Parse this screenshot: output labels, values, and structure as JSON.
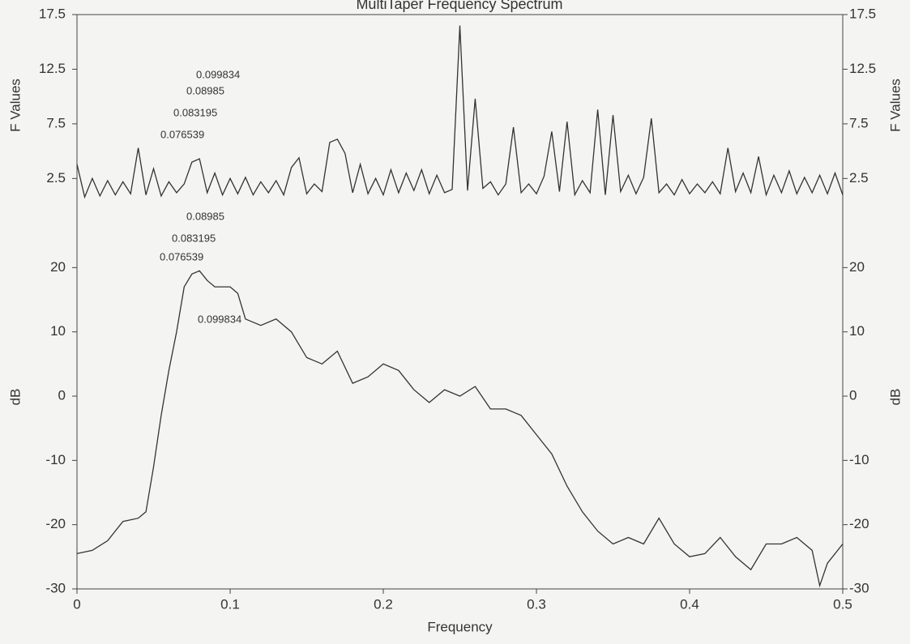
{
  "chart_data": [
    {
      "type": "line",
      "title": "MultiTaper Frequency Spectrum",
      "ylabel": "F Values",
      "x": [
        0,
        0.005,
        0.01,
        0.015,
        0.02,
        0.025,
        0.03,
        0.035,
        0.04,
        0.045,
        0.05,
        0.055,
        0.06,
        0.065,
        0.07,
        0.075,
        0.08,
        0.085,
        0.09,
        0.095,
        0.1,
        0.105,
        0.11,
        0.115,
        0.12,
        0.125,
        0.13,
        0.135,
        0.14,
        0.145,
        0.15,
        0.155,
        0.16,
        0.165,
        0.17,
        0.175,
        0.18,
        0.185,
        0.19,
        0.195,
        0.2,
        0.205,
        0.21,
        0.215,
        0.22,
        0.225,
        0.23,
        0.235,
        0.24,
        0.245,
        0.25,
        0.255,
        0.26,
        0.265,
        0.27,
        0.275,
        0.28,
        0.285,
        0.29,
        0.295,
        0.3,
        0.305,
        0.31,
        0.315,
        0.32,
        0.325,
        0.33,
        0.335,
        0.34,
        0.345,
        0.35,
        0.355,
        0.36,
        0.365,
        0.37,
        0.375,
        0.38,
        0.385,
        0.39,
        0.395,
        0.4,
        0.405,
        0.41,
        0.415,
        0.42,
        0.425,
        0.43,
        0.435,
        0.44,
        0.445,
        0.45,
        0.455,
        0.46,
        0.465,
        0.47,
        0.475,
        0.48,
        0.485,
        0.49,
        0.495,
        0.5
      ],
      "values": [
        3.8,
        0.8,
        2.5,
        0.9,
        2.3,
        1.0,
        2.2,
        1.1,
        5.3,
        1.0,
        3.4,
        0.9,
        2.2,
        1.2,
        2.0,
        4.0,
        4.3,
        1.2,
        3.0,
        1.0,
        2.5,
        1.1,
        2.6,
        1.0,
        2.2,
        1.2,
        2.3,
        1.0,
        3.5,
        4.4,
        1.1,
        2.0,
        1.3,
        5.8,
        6.1,
        4.8,
        1.2,
        3.8,
        1.1,
        2.5,
        1.0,
        3.3,
        1.2,
        3.0,
        1.4,
        3.3,
        1.1,
        2.8,
        1.2,
        1.5,
        16.5,
        1.4,
        9.8,
        1.6,
        2.2,
        1.0,
        2.0,
        7.2,
        1.2,
        2.0,
        1.1,
        2.7,
        6.8,
        1.3,
        7.7,
        1.0,
        2.3,
        1.2,
        8.8,
        1.0,
        8.3,
        1.3,
        2.8,
        1.1,
        2.6,
        8.0,
        1.2,
        2.0,
        1.0,
        2.4,
        1.1,
        2.0,
        1.2,
        2.2,
        1.1,
        5.3,
        1.3,
        3.0,
        1.2,
        4.5,
        1.0,
        2.8,
        1.2,
        3.2,
        1.1,
        2.6,
        1.2,
        2.8,
        1.1,
        3.0,
        1.0
      ],
      "color": "#333333",
      "xlim": [
        0,
        0.5
      ],
      "ylim": [
        0.3,
        17.5
      ],
      "yticks": [
        2.5,
        7.5,
        12.5,
        17.5
      ],
      "annotations": [
        "0.099834",
        "0.08985",
        "0.083195",
        "0.076539"
      ]
    },
    {
      "type": "line",
      "ylabel": "dB",
      "xlabel": "Frequency",
      "x": [
        0,
        0.01,
        0.02,
        0.03,
        0.04,
        0.045,
        0.05,
        0.055,
        0.06,
        0.065,
        0.07,
        0.075,
        0.08,
        0.085,
        0.09,
        0.1,
        0.105,
        0.11,
        0.12,
        0.13,
        0.14,
        0.15,
        0.16,
        0.17,
        0.18,
        0.19,
        0.2,
        0.21,
        0.22,
        0.23,
        0.24,
        0.25,
        0.26,
        0.27,
        0.28,
        0.29,
        0.3,
        0.31,
        0.32,
        0.33,
        0.34,
        0.35,
        0.36,
        0.37,
        0.38,
        0.39,
        0.4,
        0.41,
        0.42,
        0.43,
        0.44,
        0.45,
        0.46,
        0.47,
        0.48,
        0.485,
        0.49,
        0.5
      ],
      "values": [
        -24.5,
        -24,
        -22.5,
        -19.5,
        -19,
        -18,
        -11,
        -3,
        4,
        10,
        17,
        19,
        19.5,
        18,
        17,
        17,
        16,
        12,
        11,
        12,
        10,
        6,
        5,
        7,
        2,
        3,
        5,
        4,
        1,
        -1,
        1,
        0,
        1.5,
        -2,
        -2,
        -3,
        -6,
        -9,
        -14,
        -18,
        -21,
        -23,
        -22,
        -23,
        -19,
        -23,
        -25,
        -24.5,
        -22,
        -25,
        -27,
        -23,
        -23,
        -22,
        -24,
        -29.5,
        -26,
        -23
      ],
      "color": "#333333",
      "xlim": [
        0,
        0.5
      ],
      "xticks": [
        0,
        0.1,
        0.2,
        0.3,
        0.4,
        0.5
      ],
      "ylim": [
        -30,
        30
      ],
      "yticks": [
        -30,
        -20,
        -10,
        0,
        10,
        20
      ],
      "annotations": [
        "0.08985",
        "0.083195",
        "0.076539",
        "0.099834"
      ]
    }
  ]
}
